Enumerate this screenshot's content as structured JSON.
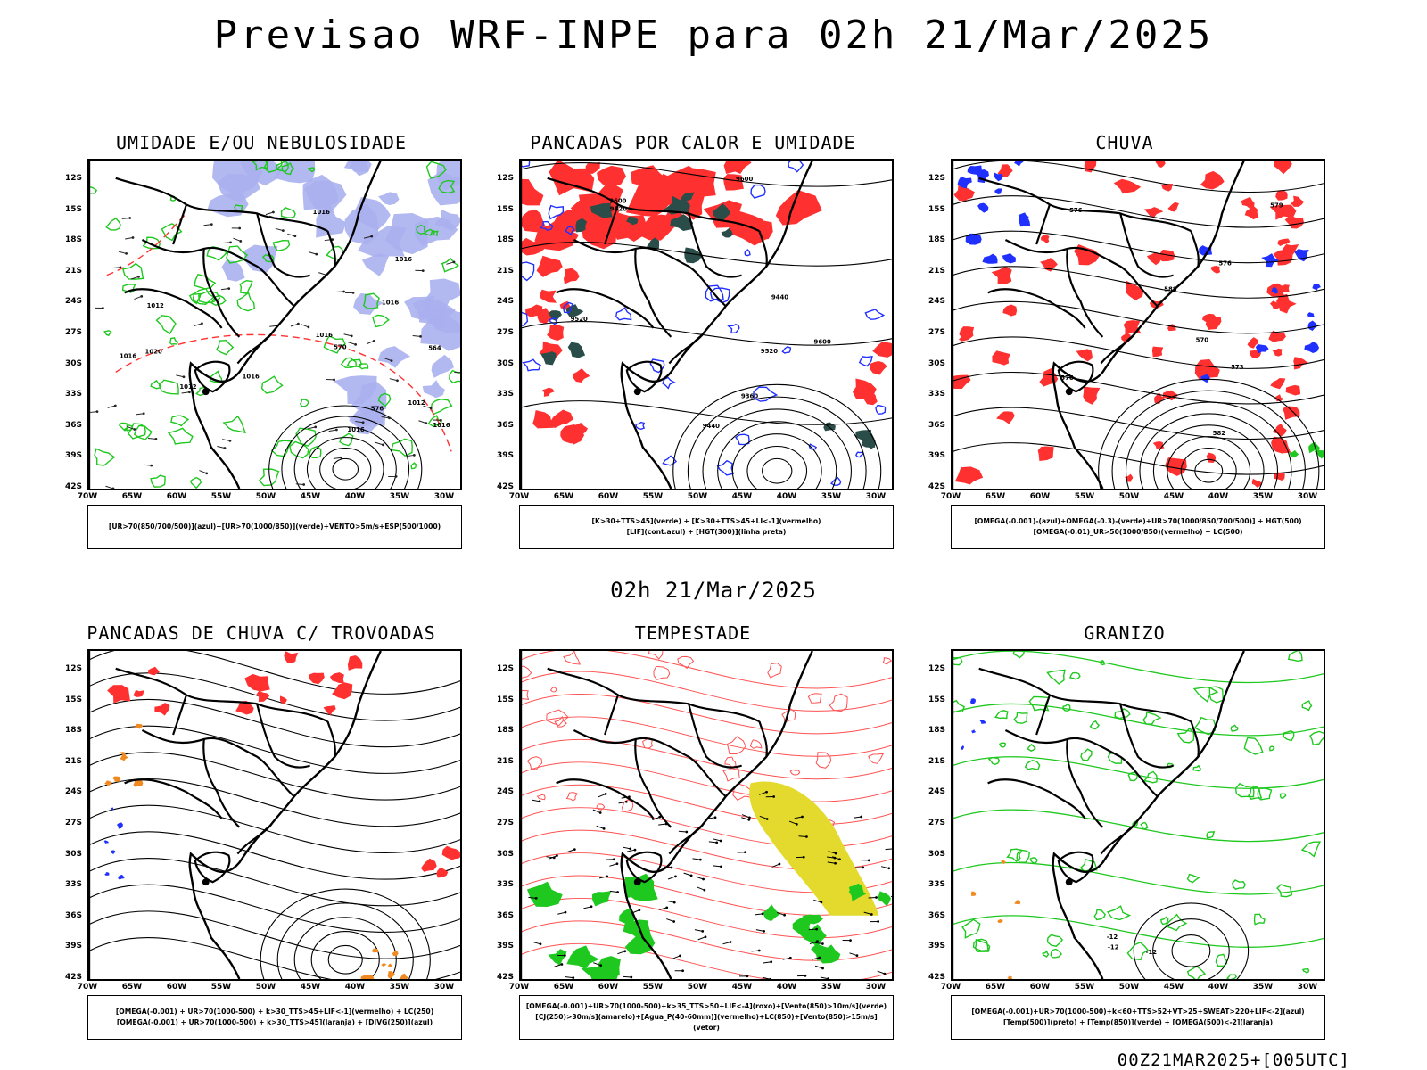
{
  "title": "Previsao WRF-INPE  para 02h 21/Mar/2025",
  "mid_title": "02h 21/Mar/2025",
  "footer_stamp": "00Z21MAR2025+[005UTC]",
  "axes": {
    "lat_ticks": [
      "12S",
      "15S",
      "18S",
      "21S",
      "24S",
      "27S",
      "30S",
      "33S",
      "36S",
      "39S",
      "42S"
    ],
    "lon_ticks": [
      "70W",
      "65W",
      "60W",
      "55W",
      "50W",
      "45W",
      "40W",
      "35W",
      "30W"
    ]
  },
  "colors": {
    "green": "#1ec81e",
    "red": "#ff3030",
    "blue": "#2030ff",
    "lavender": "#aab0ee",
    "darkteal": "#2a4d4a",
    "yellow": "#e4da2e",
    "orange": "#f08a20"
  },
  "chart_data": [
    {
      "type": "map",
      "id": "p1",
      "title": "UMIDADE E/OU NEBULOSIDADE",
      "legend": [
        "[UR>70(850/700/500)](azul)+[UR>70(1000/850)](verde)+VENTO>5m/s+ESP(500/1000)"
      ],
      "contour_labels": [
        "1016",
        "1012",
        "1016",
        "1016",
        "1016",
        "1012",
        "1020",
        "1016",
        "1016",
        "1016",
        "1012",
        "1016",
        "570",
        "576",
        "564"
      ],
      "lat_range": [
        -42,
        -10
      ],
      "lon_range": [
        -70,
        -28
      ]
    },
    {
      "type": "map",
      "id": "p2",
      "title": "PANCADAS POR CALOR E UMIDADE",
      "legend": [
        "[K>30+TTS>45](verde) + [K>30+TTS>45+LI<-1](vermelho)",
        "[LIF](cont.azul) + [HGT(300)](linha preta)"
      ],
      "contour_labels": [
        "9600",
        "9600",
        "9600",
        "9520",
        "9520",
        "9520",
        "9440",
        "9440",
        "9360"
      ],
      "lat_range": [
        -42,
        -10
      ],
      "lon_range": [
        -70,
        -28
      ]
    },
    {
      "type": "map",
      "id": "p3",
      "title": "CHUVA",
      "legend": [
        "[OMEGA(-0.001)-(azul)+OMEGA(-0.3)-(verde)+UR>70(1000/850/700/500)] + HGT(500)",
        "[OMEGA(-0.01)_UR>50(1000/850)(vermelho) + LC(500)"
      ],
      "contour_labels": [
        "588",
        "582",
        "576",
        "576",
        "573",
        "570",
        "579",
        "576"
      ],
      "lat_range": [
        -42,
        -10
      ],
      "lon_range": [
        -70,
        -28
      ]
    },
    {
      "type": "map",
      "id": "p4",
      "title": "PANCADAS DE CHUVA C/ TROVOADAS",
      "legend": [
        "[OMEGA(-0.001) + UR>70(1000-500) + k>30_TTS>45+LIF<-1](vermelho) + LC(250)",
        "[OMEGA(-0.001) + UR>70(1000-500) + k>30_TTS>45](laranja) + [DIVG(250)](azul)"
      ],
      "contour_labels": [],
      "lat_range": [
        -42,
        -10
      ],
      "lon_range": [
        -70,
        -28
      ]
    },
    {
      "type": "map",
      "id": "p5",
      "title": "TEMPESTADE",
      "legend": [
        "[OMEGA(-0.001)+UR>70(1000-500)+k>35_TTS>50+LIF<-4](roxo)+[Vento(850)>10m/s](verde)",
        "[CJ(250)>30m/s](amarelo)+[Agua_P(40-60mm)](vermelho)+LC(850)+[Vento(850)>15m/s](vetor)"
      ],
      "contour_labels": [],
      "lat_range": [
        -42,
        -10
      ],
      "lon_range": [
        -70,
        -28
      ]
    },
    {
      "type": "map",
      "id": "p6",
      "title": "GRANIZO",
      "legend": [
        "[OMEGA(-0.001)+UR>70(1000-500)+k<60+TTS>52+VT>25+SWEAT>220+LIF<-2](azul)",
        "[Temp(500)](preto) + [Temp(850)](verde) + [OMEGA(500)<-2](laranja)"
      ],
      "contour_labels": [
        "-12",
        "-12",
        "-12"
      ],
      "lat_range": [
        -42,
        -10
      ],
      "lon_range": [
        -70,
        -28
      ]
    }
  ]
}
